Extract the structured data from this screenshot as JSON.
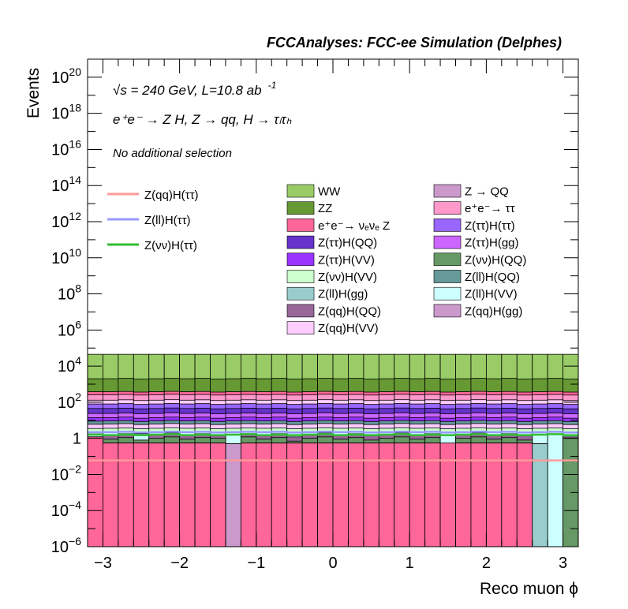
{
  "chart_data": {
    "type": "bar",
    "stacked": true,
    "title": "FCCAnalyses: FCC-ee Simulation (Delphes)",
    "xlabel": "Reco muon ϕ",
    "ylabel": "Events",
    "ylog": true,
    "xlim": [
      -3.2,
      3.2
    ],
    "ylim": [
      1e-06,
      1e+21
    ],
    "xticks": [
      -3,
      -2,
      -1,
      0,
      1,
      2,
      3
    ],
    "xtick_labels": [
      "−3",
      "−2",
      "−1",
      "0",
      "1",
      "2",
      "3"
    ],
    "yticks": [
      {
        "exp": -6,
        "label": "10",
        "sup": "−6"
      },
      {
        "exp": -4,
        "label": "10",
        "sup": "−4"
      },
      {
        "exp": -2,
        "label": "10",
        "sup": "−2"
      },
      {
        "exp": 0,
        "label": "1",
        "sup": ""
      },
      {
        "exp": 2,
        "label": "10",
        "sup": "2"
      },
      {
        "exp": 4,
        "label": "10",
        "sup": "4"
      },
      {
        "exp": 6,
        "label": "10",
        "sup": "6"
      },
      {
        "exp": 8,
        "label": "10",
        "sup": "8"
      },
      {
        "exp": 10,
        "label": "10",
        "sup": "10"
      },
      {
        "exp": 12,
        "label": "10",
        "sup": "12"
      },
      {
        "exp": 14,
        "label": "10",
        "sup": "14"
      },
      {
        "exp": 16,
        "label": "10",
        "sup": "16"
      },
      {
        "exp": 18,
        "label": "10",
        "sup": "18"
      },
      {
        "exp": 20,
        "label": "10",
        "sup": "20"
      }
    ],
    "annotations": {
      "energy_lumi": "√s = 240 GeV, L=10.8 ab",
      "energy_lumi_sup": "-1",
      "process": "e⁺e⁻ → Z H, Z → qq, H → τₗτₕ",
      "selection": "No additional selection"
    },
    "signal_legend": [
      {
        "name": "Z(qq)H(ττ)",
        "color": "#ff9999"
      },
      {
        "name": "Z(ll)H(ττ)",
        "color": "#9999ff"
      },
      {
        "name": "Z(νν)H(ττ)",
        "color": "#33bb33"
      }
    ],
    "background_legend": [
      {
        "name": "WW",
        "color": "#99cc66"
      },
      {
        "name": "Z → QQ",
        "color": "#cc99cc"
      },
      {
        "name": "ZZ",
        "color": "#669933"
      },
      {
        "name": "e⁺e⁻→ ττ",
        "color": "#ff99cc"
      },
      {
        "name": "e⁺e⁻→ νₑνₑ Z",
        "color": "#ff6699"
      },
      {
        "name": "Z(ττ)H(ττ)",
        "color": "#9966ff"
      },
      {
        "name": "Z(ττ)H(QQ)",
        "color": "#6633cc"
      },
      {
        "name": "Z(ττ)H(gg)",
        "color": "#cc66ff"
      },
      {
        "name": "Z(ττ)H(VV)",
        "color": "#9933ff"
      },
      {
        "name": "Z(νν)H(QQ)",
        "color": "#669966"
      },
      {
        "name": "Z(νν)H(VV)",
        "color": "#ccffcc"
      },
      {
        "name": "Z(ll)H(QQ)",
        "color": "#669999"
      },
      {
        "name": "Z(ll)H(gg)",
        "color": "#99cccc"
      },
      {
        "name": "Z(ll)H(VV)",
        "color": "#ccffff"
      },
      {
        "name": "Z(qq)H(QQ)",
        "color": "#996699"
      },
      {
        "name": "Z(qq)H(gg)",
        "color": "#cc99cc"
      },
      {
        "name": "Z(qq)H(VV)",
        "color": "#ffccff"
      }
    ],
    "stack_layers": [
      {
        "color": "#ff6699",
        "top": [
          1.2,
          0.55,
          0.55,
          0.55,
          0.55,
          0.55,
          0.55,
          0.55,
          0.55,
          1e-06,
          0.55,
          0.55,
          0.55,
          0.55,
          0.55,
          0.55,
          0.55,
          0.55,
          0.55,
          0.55,
          0.55,
          0.55,
          0.55,
          0.55,
          0.55,
          0.55,
          0.55,
          0.55,
          0.55,
          1e-06,
          1e-06,
          1e-06
        ]
      },
      {
        "color": "#99cccc",
        "top": [
          1.2,
          0.55,
          0.55,
          0.55,
          0.55,
          0.55,
          0.55,
          0.55,
          0.55,
          1e-06,
          0.55,
          0.55,
          0.55,
          0.55,
          0.55,
          0.55,
          0.55,
          0.55,
          0.55,
          0.55,
          0.55,
          0.55,
          0.55,
          0.45,
          0.55,
          0.55,
          0.55,
          0.55,
          0.55,
          0.5,
          1e-06,
          1e-06
        ]
      },
      {
        "color": "#cc99cc",
        "top": [
          1.2,
          0.55,
          0.55,
          0.55,
          0.55,
          0.55,
          0.55,
          0.55,
          0.55,
          0.5,
          0.55,
          0.55,
          0.55,
          0.55,
          0.55,
          0.55,
          0.55,
          0.55,
          0.55,
          0.55,
          0.55,
          0.55,
          0.55,
          0.45,
          0.55,
          0.55,
          0.55,
          0.55,
          0.55,
          0.5,
          1e-06,
          1e-06
        ]
      },
      {
        "color": "#669966",
        "top": [
          1.2,
          0.9,
          1.1,
          0.8,
          1.0,
          1.2,
          0.9,
          1.1,
          1.0,
          0.5,
          1.2,
          0.9,
          1.1,
          0.7,
          1.0,
          1.2,
          0.9,
          1.1,
          0.8,
          1.0,
          1.2,
          0.9,
          1.1,
          0.45,
          1.0,
          1.2,
          0.9,
          1.1,
          0.8,
          0.5,
          1e-06,
          1.0
        ]
      },
      {
        "color": "#996699",
        "top": [
          1.2,
          1.6,
          1.8,
          0.8,
          1.6,
          2.0,
          1.6,
          1.8,
          1.4,
          0.5,
          1.8,
          1.6,
          1.8,
          1.2,
          1.6,
          2.0,
          1.6,
          1.8,
          1.4,
          1.6,
          2.0,
          1.6,
          1.8,
          0.45,
          1.6,
          2.0,
          1.6,
          1.8,
          1.4,
          0.5,
          1e-06,
          1.2
        ]
      },
      {
        "color": "#ccffff",
        "top": [
          2.0,
          2.2,
          2.4,
          1.8,
          2.2,
          2.5,
          2.2,
          2.4,
          2.0,
          2.2,
          2.4,
          2.2,
          2.4,
          2.0,
          2.2,
          2.5,
          2.2,
          2.4,
          2.0,
          2.2,
          2.5,
          2.2,
          2.4,
          2.0,
          2.2,
          2.5,
          2.2,
          2.4,
          2.0,
          2.2,
          2.4,
          2.0
        ]
      },
      {
        "color": "#ccffcc",
        "top": [
          3.5,
          3.6,
          3.8,
          3.4,
          3.6,
          3.9,
          3.6,
          3.8,
          3.4,
          3.6,
          3.8,
          3.6,
          3.8,
          3.4,
          3.6,
          3.9,
          3.6,
          3.8,
          3.4,
          3.6,
          3.9,
          3.6,
          3.8,
          3.4,
          3.6,
          3.9,
          3.6,
          3.8,
          3.4,
          3.6,
          3.8,
          3.4
        ]
      },
      {
        "color": "#ffccff",
        "top": [
          6.0,
          6.2,
          6.5,
          5.8,
          6.2,
          6.6,
          6.2,
          6.5,
          5.8,
          6.2,
          6.5,
          6.2,
          6.5,
          5.8,
          6.2,
          6.6,
          6.2,
          6.5,
          5.8,
          6.2,
          6.6,
          6.2,
          6.5,
          5.8,
          6.2,
          6.6,
          6.2,
          6.5,
          5.8,
          6.2,
          6.5,
          5.8
        ]
      },
      {
        "color": "#669999",
        "top": [
          9.0,
          9.2,
          9.6,
          8.6,
          9.2,
          9.8,
          9.2,
          9.6,
          8.6,
          9.2,
          9.6,
          9.2,
          9.6,
          8.6,
          9.2,
          9.8,
          9.2,
          9.6,
          8.6,
          9.2,
          9.8,
          9.2,
          9.6,
          8.6,
          9.2,
          9.8,
          9.2,
          9.6,
          8.6,
          9.2,
          9.6,
          8.6
        ]
      },
      {
        "color": "#9933ff",
        "top": [
          14,
          14,
          15,
          13,
          14,
          15,
          14,
          15,
          13,
          14,
          15,
          14,
          15,
          13,
          14,
          15,
          14,
          15,
          13,
          14,
          15,
          14,
          15,
          13,
          14,
          15,
          14,
          15,
          13,
          14,
          15,
          13
        ]
      },
      {
        "color": "#cc66ff",
        "top": [
          24,
          24,
          25,
          23,
          24,
          26,
          24,
          25,
          23,
          24,
          25,
          24,
          25,
          23,
          24,
          26,
          24,
          25,
          23,
          24,
          26,
          24,
          25,
          23,
          24,
          26,
          24,
          25,
          23,
          24,
          25,
          23
        ]
      },
      {
        "color": "#6633cc",
        "top": [
          45,
          45,
          47,
          43,
          45,
          48,
          45,
          47,
          43,
          45,
          47,
          45,
          47,
          43,
          45,
          48,
          45,
          47,
          43,
          45,
          48,
          45,
          47,
          43,
          45,
          48,
          45,
          47,
          43,
          45,
          47,
          43
        ]
      },
      {
        "color": "#9966ff",
        "top": [
          80,
          80,
          84,
          76,
          80,
          85,
          80,
          84,
          76,
          80,
          84,
          80,
          84,
          76,
          80,
          85,
          80,
          84,
          76,
          80,
          85,
          80,
          84,
          76,
          80,
          85,
          80,
          84,
          76,
          80,
          84,
          76
        ]
      },
      {
        "color": "#ffccff",
        "top": [
          130,
          130,
          136,
          124,
          130,
          138,
          130,
          136,
          124,
          130,
          136,
          130,
          136,
          124,
          130,
          138,
          130,
          136,
          124,
          130,
          138,
          130,
          136,
          124,
          130,
          138,
          130,
          136,
          124,
          130,
          136,
          124
        ]
      },
      {
        "color": "#ff99cc",
        "top": [
          260,
          260,
          270,
          250,
          260,
          275,
          260,
          270,
          250,
          260,
          270,
          260,
          270,
          250,
          260,
          275,
          260,
          270,
          250,
          260,
          275,
          260,
          270,
          250,
          260,
          275,
          260,
          270,
          250,
          260,
          270,
          250
        ]
      },
      {
        "color": "#ff6699",
        "top": [
          380,
          380,
          395,
          365,
          380,
          400,
          380,
          395,
          365,
          380,
          395,
          380,
          395,
          365,
          380,
          400,
          380,
          395,
          365,
          380,
          400,
          380,
          395,
          365,
          380,
          400,
          380,
          395,
          365,
          380,
          395,
          365
        ]
      },
      {
        "color": "#669933",
        "top": [
          2000,
          2000,
          2100,
          1900,
          2000,
          2100,
          2000,
          2100,
          1900,
          2000,
          2100,
          2000,
          2100,
          1900,
          2000,
          2100,
          2000,
          2100,
          1900,
          2000,
          2100,
          2000,
          2100,
          1900,
          2000,
          2100,
          2000,
          2100,
          1900,
          2000,
          2100,
          1900
        ]
      },
      {
        "color": "#99cc66",
        "top": [
          45000,
          45000,
          45000,
          45000,
          45000,
          45000,
          45000,
          45000,
          45000,
          45000,
          45000,
          45000,
          45000,
          45000,
          45000,
          45000,
          45000,
          45000,
          45000,
          45000,
          45000,
          45000,
          45000,
          45000,
          45000,
          45000,
          45000,
          45000,
          45000,
          45000,
          45000,
          45000
        ]
      }
    ],
    "signal_lines": [
      {
        "name": "Z(qq)H(ττ)",
        "color": "#ff9999",
        "values": [
          0.06,
          0.06,
          0.06,
          0.06,
          0.06,
          0.06,
          0.06,
          0.06,
          0.06,
          0.06,
          0.06,
          0.06,
          0.06,
          0.06,
          0.06,
          0.06,
          0.06,
          0.06,
          0.06,
          0.06,
          0.06,
          0.06,
          0.06,
          0.06,
          0.06,
          0.06,
          0.06,
          0.06,
          0.06,
          0.06,
          0.06,
          0.06
        ]
      },
      {
        "name": "Z(ll)H(ττ)",
        "color": "#9999ff",
        "values": [
          2.2,
          2.2,
          2.3,
          2.1,
          2.2,
          2.3,
          2.2,
          2.3,
          2.1,
          2.2,
          2.3,
          2.2,
          2.3,
          2.1,
          2.2,
          2.3,
          2.2,
          2.3,
          2.1,
          2.2,
          2.3,
          2.2,
          2.3,
          2.1,
          2.2,
          2.3,
          2.2,
          2.3,
          2.1,
          2.2,
          2.3,
          2.1
        ]
      },
      {
        "name": "Z(νν)H(ττ)",
        "color": "#33bb33",
        "values": [
          1.6,
          1.5,
          1.6,
          1.5,
          1.6,
          1.7,
          1.5,
          1.6,
          1.5,
          1.6,
          1.7,
          1.5,
          1.6,
          1.5,
          1.6,
          1.7,
          1.5,
          1.6,
          1.5,
          1.6,
          1.7,
          1.5,
          1.6,
          1.5,
          1.6,
          1.7,
          1.5,
          1.6,
          1.5,
          1.6,
          1.7,
          1.5
        ]
      }
    ]
  }
}
